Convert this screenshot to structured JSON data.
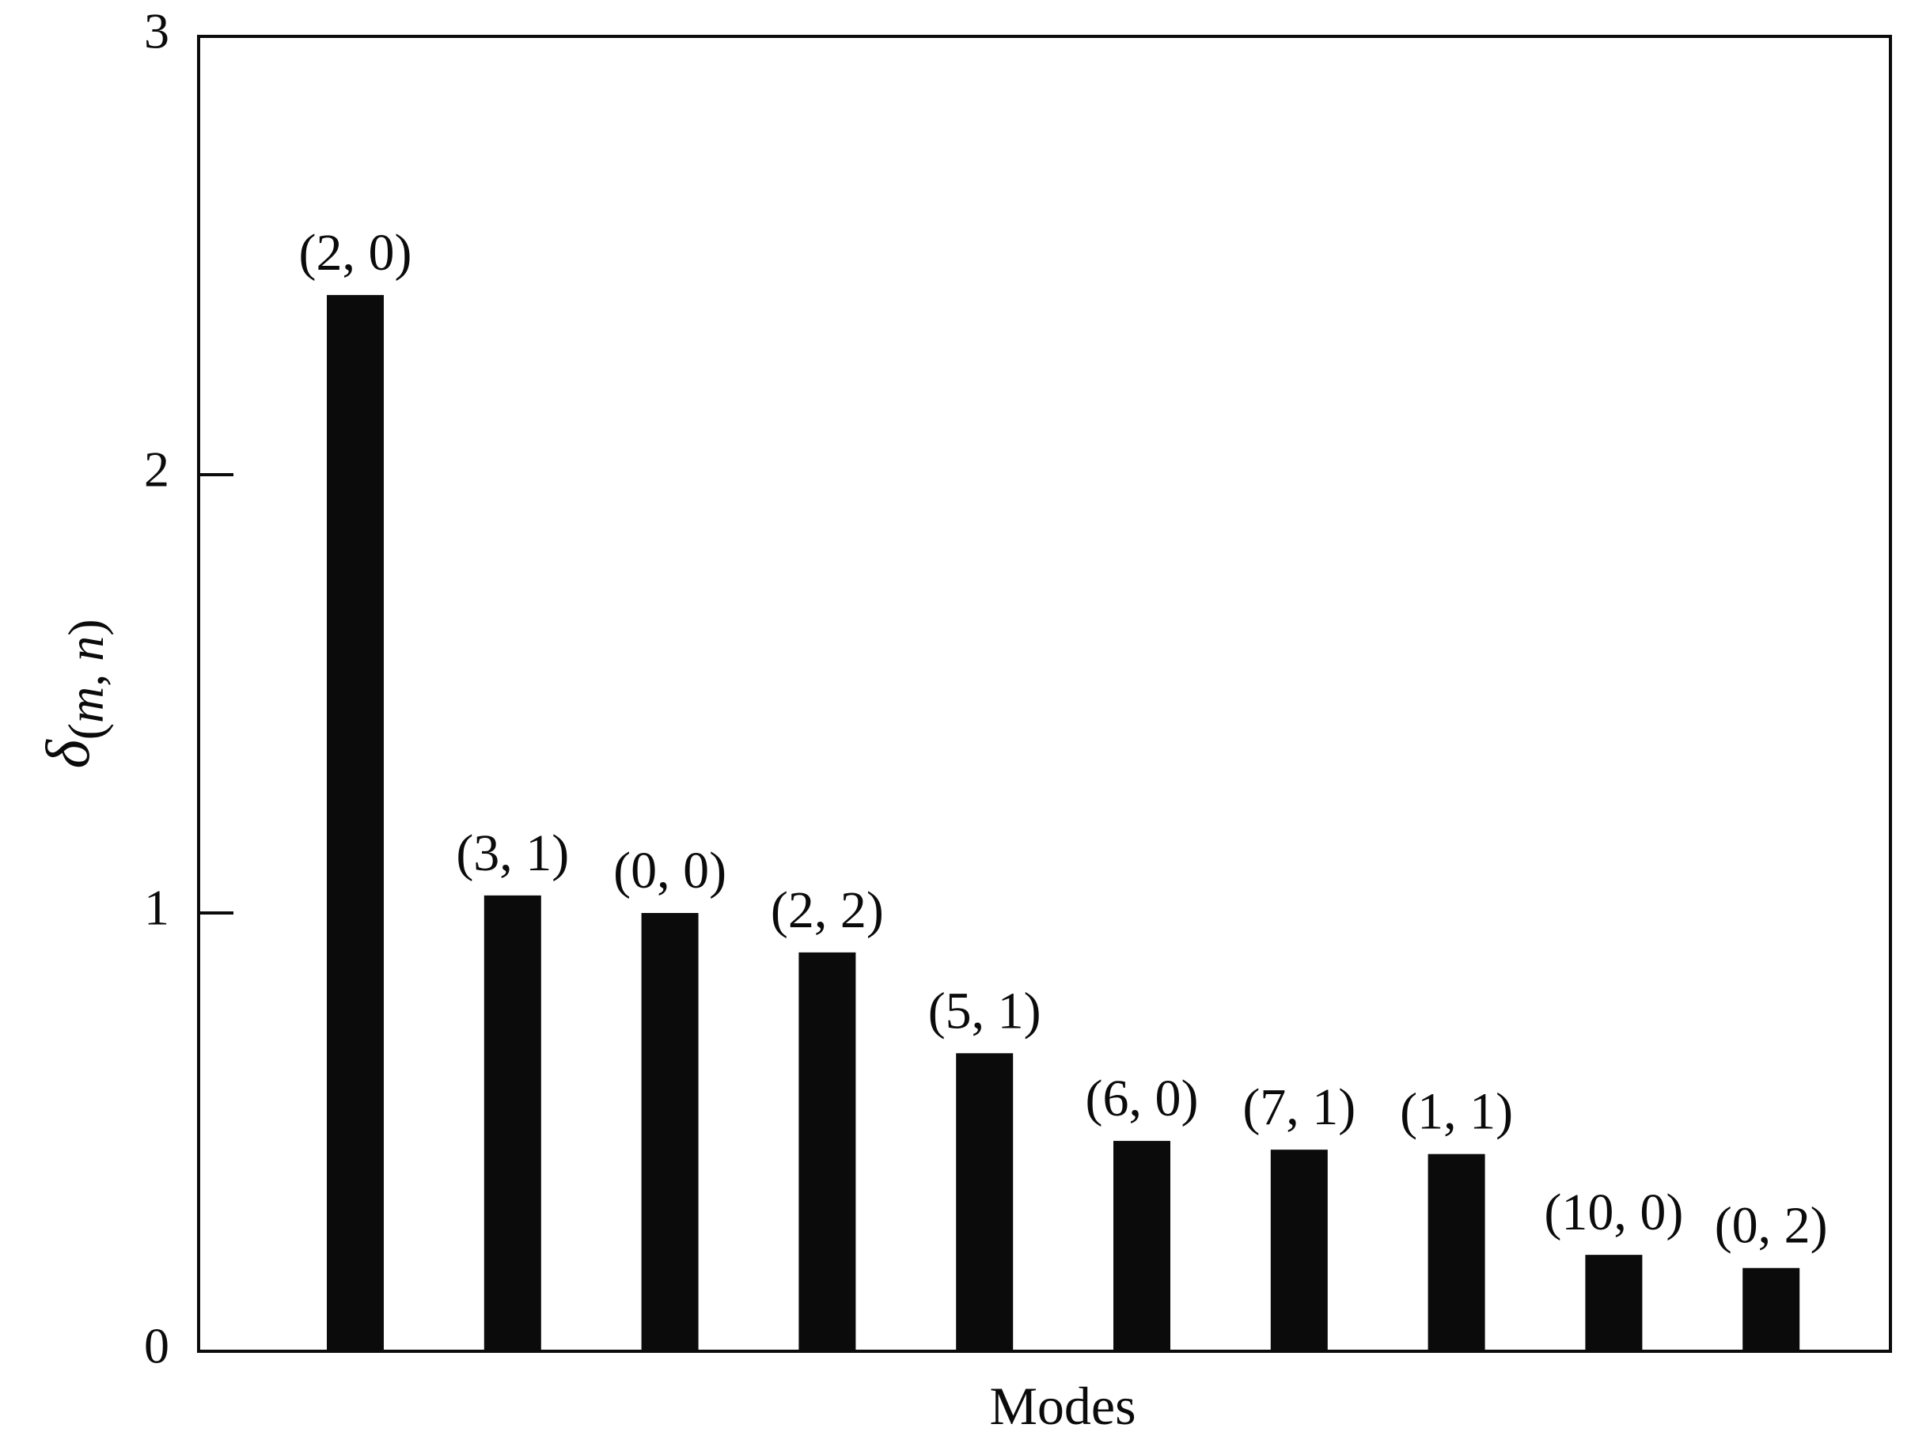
{
  "chart_data": {
    "type": "bar",
    "categories": [
      "(2, 0)",
      "(3, 1)",
      "(0, 0)",
      "(2, 2)",
      "(5, 1)",
      "(6, 0)",
      "(7, 1)",
      "(1, 1)",
      "(10, 0)",
      "(0, 2)"
    ],
    "values": [
      2.41,
      1.04,
      1.0,
      0.91,
      0.68,
      0.48,
      0.46,
      0.45,
      0.22,
      0.19
    ],
    "xlabel": "Modes",
    "ylabel": {
      "symbol": "δ",
      "subscript_open": "(",
      "subscript_m": "m",
      "subscript_sep": ", ",
      "subscript_n": "n",
      "subscript_close": ")"
    },
    "ylim": [
      0,
      3
    ],
    "yticks": [
      0,
      1,
      2,
      3
    ],
    "ytick_labels": [
      "0",
      "1",
      "2",
      "3"
    ],
    "grid": false,
    "legend": "none",
    "bar_color": "#0b0b0c"
  }
}
